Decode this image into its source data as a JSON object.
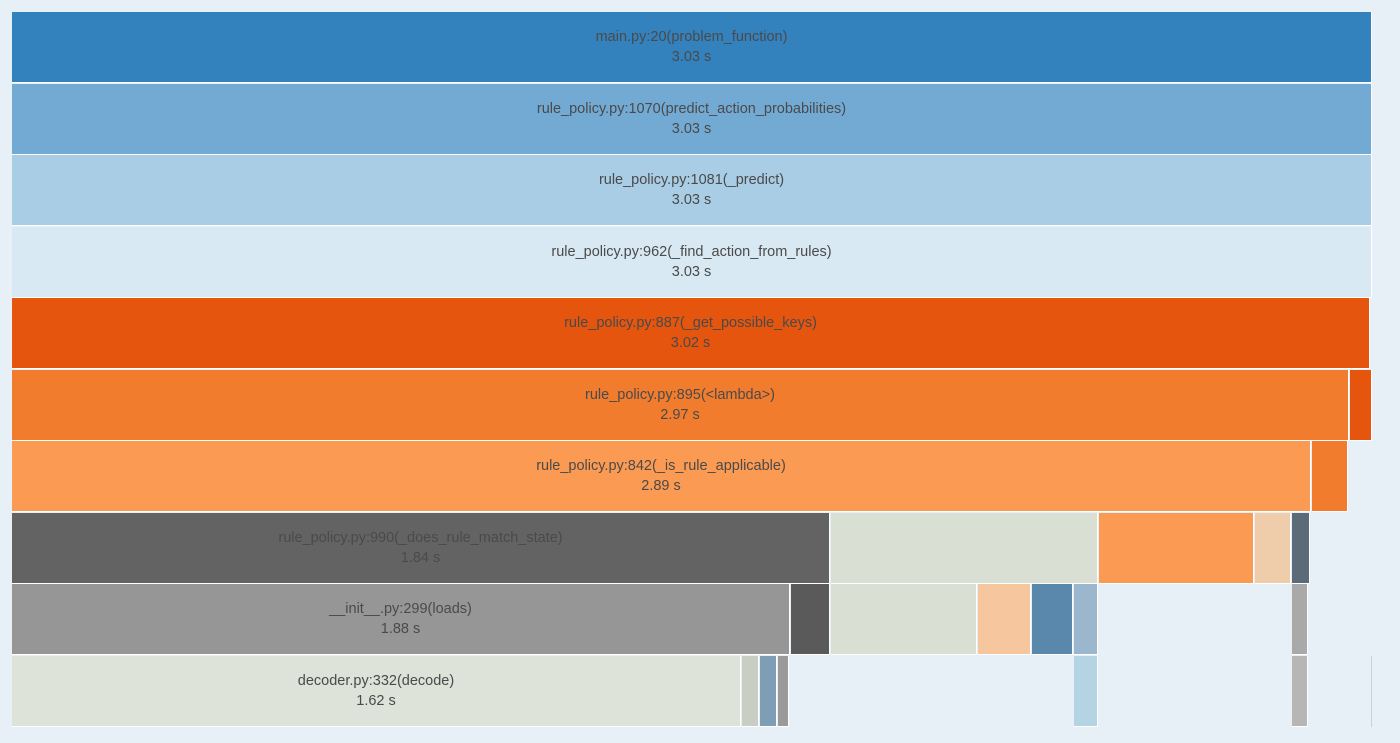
{
  "profile": {
    "rows": [
      [
        {
          "name": "main.py:20(problem_function)",
          "time": "3.03 s",
          "seconds": 3.03,
          "color": "#3482bd",
          "labeled": true
        }
      ],
      [
        {
          "name": "rule_policy.py:1070(predict_action_probabilities)",
          "time": "3.03 s",
          "seconds": 3.03,
          "color": "#72aad3",
          "labeled": true
        }
      ],
      [
        {
          "name": "rule_policy.py:1081(_predict)",
          "time": "3.03 s",
          "seconds": 3.03,
          "color": "#a9cde5",
          "labeled": true
        }
      ],
      [
        {
          "name": "rule_policy.py:962(_find_action_from_rules)",
          "time": "3.03 s",
          "seconds": 3.03,
          "color": "#d9e9f3",
          "labeled": true
        }
      ],
      [
        {
          "name": "rule_policy.py:887(_get_possible_keys)",
          "time": "3.02 s",
          "seconds": 3.02,
          "color": "#e6550d",
          "labeled": true
        }
      ],
      [
        {
          "name": "rule_policy.py:895(<lambda>)",
          "time": "2.97 s",
          "seconds": 2.97,
          "color": "#f17c2e",
          "labeled": true
        },
        {
          "color": "#e6550d",
          "labeled": false
        }
      ],
      [
        {
          "name": "rule_policy.py:842(_is_rule_applicable)",
          "time": "2.89 s",
          "seconds": 2.89,
          "color": "#fb9b53",
          "labeled": true
        },
        {
          "color": "#f17c2e",
          "labeled": false
        }
      ],
      [
        {
          "name": "rule_policy.py:990(_does_rule_match_state)",
          "time": "1.84 s",
          "seconds": 1.84,
          "color": "#636363",
          "labeled": true
        },
        {
          "color": "#d9dfd3",
          "labeled": false
        },
        {
          "color": "#fb9b53",
          "labeled": false
        },
        {
          "color": "#efccaa",
          "labeled": false
        },
        {
          "color": "#5b6b78",
          "labeled": false
        }
      ],
      [
        {
          "name": "__init__.py:299(loads)",
          "time": "1.88 s",
          "seconds": 1.88,
          "color": "#969696",
          "labeled": true
        },
        {
          "color": "#5a5a5a",
          "labeled": false
        },
        {
          "color": "#d9dfd3",
          "labeled": false
        },
        {
          "color": "#f6c79e",
          "labeled": false
        },
        {
          "color": "#5a88ad",
          "labeled": false
        },
        {
          "color": "#9bb7ce",
          "labeled": false
        },
        {
          "color": "#a9a9a9",
          "labeled": false
        }
      ],
      [
        {
          "name": "decoder.py:332(decode)",
          "time": "1.62 s",
          "seconds": 1.62,
          "color": "#dde3d9",
          "labeled": true
        },
        {
          "color": "#c9cec4",
          "labeled": false
        },
        {
          "color": "#7f9db5",
          "labeled": false
        },
        {
          "color": "#9a9a9a",
          "labeled": false
        },
        {
          "color": "#b4d3e3",
          "labeled": false
        },
        {
          "color": "#b6b6b6",
          "labeled": false
        }
      ]
    ]
  }
}
